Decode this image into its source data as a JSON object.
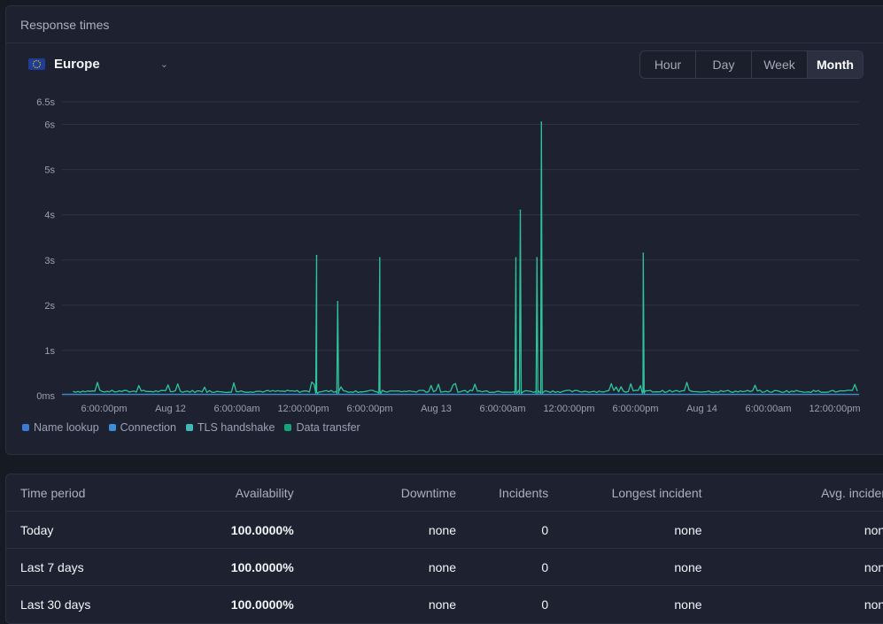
{
  "panel": {
    "title": "Response times"
  },
  "region": {
    "label": "Europe",
    "flag_icon": "eu-flag-icon"
  },
  "range_buttons": [
    {
      "label": "Hour",
      "active": false
    },
    {
      "label": "Day",
      "active": false
    },
    {
      "label": "Week",
      "active": false
    },
    {
      "label": "Month",
      "active": true
    }
  ],
  "legend": [
    {
      "label": "Name lookup",
      "color": "#3a7bd5"
    },
    {
      "label": "Connection",
      "color": "#3b8fd8"
    },
    {
      "label": "TLS handshake",
      "color": "#3fb9b9"
    },
    {
      "label": "Data transfer",
      "color": "#12a577"
    }
  ],
  "chart_data": {
    "type": "line",
    "ylim": [
      0,
      6.5
    ],
    "y_ticks": [
      "0ms",
      "1s",
      "2s",
      "3s",
      "4s",
      "5s",
      "6s",
      "6.5s"
    ],
    "x_ticks": [
      "6:00:00pm",
      "Aug 12",
      "6:00:00am",
      "12:00:00pm",
      "6:00:00pm",
      "Aug 13",
      "6:00:00am",
      "12:00:00pm",
      "6:00:00pm",
      "Aug 14",
      "6:00:00am",
      "12:00:00pm"
    ],
    "x_range_hours": [
      -9,
      63
    ],
    "grid": true,
    "legend_position": "bottom-left",
    "series": [
      {
        "name": "Data transfer",
        "color": "#2ec49b",
        "baseline_s": 0.07,
        "spikes": [
          {
            "hour": 14.0,
            "value": 3.1
          },
          {
            "hour": 15.9,
            "value": 2.08
          },
          {
            "hour": 19.7,
            "value": 3.05
          },
          {
            "hour": 32.0,
            "value": 3.05
          },
          {
            "hour": 32.4,
            "value": 4.1
          },
          {
            "hour": 33.9,
            "value": 3.05
          },
          {
            "hour": 34.3,
            "value": 6.05
          },
          {
            "hour": 43.5,
            "value": 3.15
          }
        ]
      },
      {
        "name": "TLS handshake",
        "color": "#3fb9b9",
        "baseline_s": 0.03
      }
    ]
  },
  "table": {
    "headers": [
      "Time period",
      "Availability",
      "Downtime",
      "Incidents",
      "Longest incident",
      "Avg. incident"
    ],
    "rows": [
      [
        "Today",
        "100.0000%",
        "none",
        "0",
        "none",
        "none"
      ],
      [
        "Last 7 days",
        "100.0000%",
        "none",
        "0",
        "none",
        "none"
      ],
      [
        "Last 30 days",
        "100.0000%",
        "none",
        "0",
        "none",
        "none"
      ]
    ]
  }
}
